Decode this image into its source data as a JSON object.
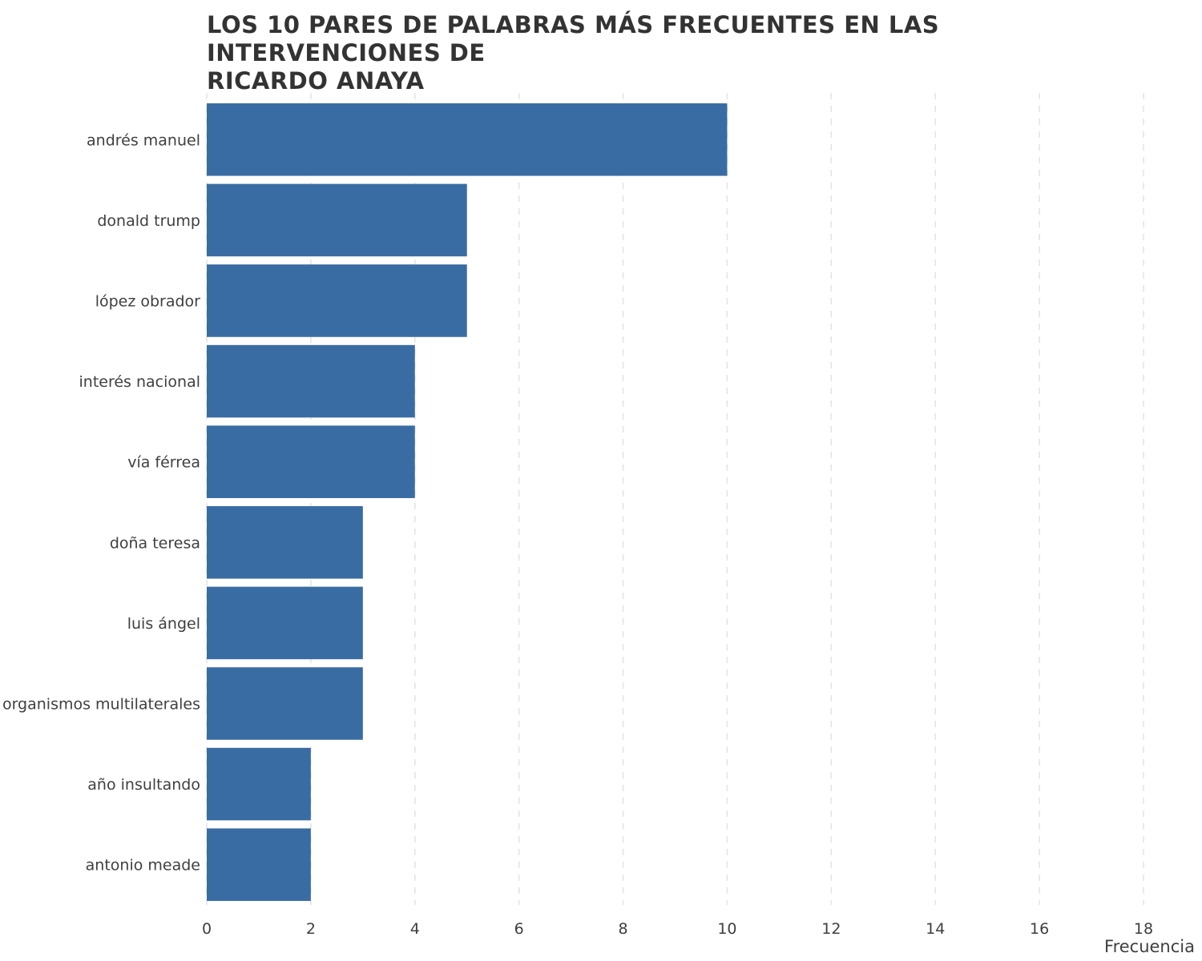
{
  "chart_data": {
    "type": "bar",
    "orientation": "horizontal",
    "title": "LOS 10 PARES DE PALABRAS MÁS FRECUENTES EN LAS INTERVENCIONES DE\n RICARDO ANAYA",
    "xlabel": "Frecuencia",
    "ylabel": "",
    "categories": [
      "andrés manuel",
      "donald trump",
      "lópez obrador",
      "interés nacional",
      "vía férrea",
      "doña teresa",
      "luis ángel",
      "organismos multilaterales",
      "año insultando",
      "antonio meade"
    ],
    "values": [
      10,
      5,
      5,
      4,
      4,
      3,
      3,
      3,
      2,
      2
    ],
    "xlim": [
      0,
      18
    ],
    "xticks": [
      0,
      2,
      4,
      6,
      8,
      10,
      12,
      14,
      16,
      18
    ],
    "grid": "vertical dashed",
    "legend": "none",
    "colors": {
      "bar": "#3a6ca4",
      "grid": "#e3e3e3",
      "text": "#3f3f3f",
      "title": "#333333"
    }
  }
}
